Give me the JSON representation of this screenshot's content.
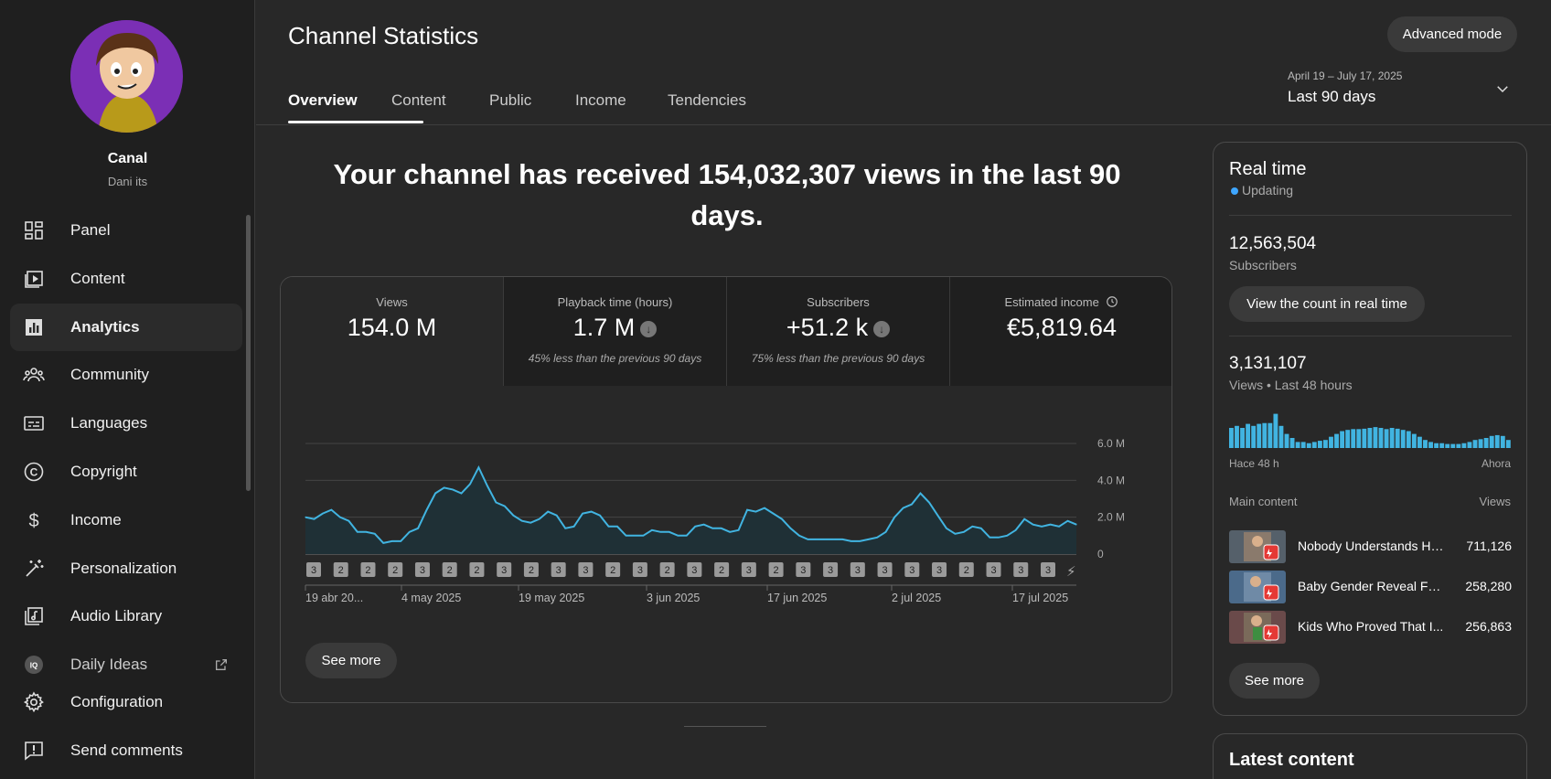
{
  "sidebar": {
    "channel_name": "Canal",
    "channel_handle": "Dani its",
    "items": [
      {
        "label": "Panel",
        "icon": "dashboard-icon"
      },
      {
        "label": "Content",
        "icon": "content-icon"
      },
      {
        "label": "Analytics",
        "icon": "analytics-icon",
        "active": true
      },
      {
        "label": "Community",
        "icon": "community-icon"
      },
      {
        "label": "Languages",
        "icon": "subtitles-icon"
      },
      {
        "label": "Copyright",
        "icon": "copyright-icon"
      },
      {
        "label": "Income",
        "icon": "dollar-icon"
      },
      {
        "label": "Personalization",
        "icon": "magic-wand-icon"
      },
      {
        "label": "Audio Library",
        "icon": "audio-library-icon"
      },
      {
        "label": "Daily Ideas",
        "icon": "ideas-icon"
      },
      {
        "label": "Configuration",
        "icon": "gear-icon"
      },
      {
        "label": "Send comments",
        "icon": "feedback-icon"
      }
    ]
  },
  "header": {
    "title": "Channel Statistics",
    "advanced_mode": "Advanced mode",
    "tabs": [
      "Overview",
      "Content",
      "Public",
      "Income",
      "Tendencies"
    ],
    "date_range": "April 19 – July 17, 2025",
    "date_label": "Last 90 days"
  },
  "headline": "Your channel has received 154,032,307 views in the last 90 days.",
  "stats": [
    {
      "label": "Views",
      "value": "154.0 M",
      "note": ""
    },
    {
      "label": "Playback time (hours)",
      "value": "1.7 M",
      "note": "45% less than the previous 90 days"
    },
    {
      "label": "Subscribers",
      "value": "+51.2 k",
      "note": "75% less than the previous 90 days"
    },
    {
      "label": "Estimated income",
      "value": "€5,819.64",
      "note": ""
    }
  ],
  "chart_data": {
    "type": "area",
    "series_name": "",
    "ylim": [
      0,
      6.0
    ],
    "y_ticks": [
      "6.0 M",
      "4.0 M",
      "2.0 M",
      "0"
    ],
    "x_tick_labels": [
      "19 abr 20...",
      "4 may 2025",
      "19 may 2025",
      "3 jun 2025",
      "17 jun 2025",
      "2 jul 2025",
      "17 jul 2025"
    ],
    "values": [
      2.0,
      1.9,
      2.2,
      2.4,
      2.0,
      1.8,
      1.2,
      1.2,
      1.1,
      0.6,
      0.7,
      0.7,
      1.2,
      1.4,
      2.4,
      3.3,
      3.6,
      3.5,
      3.3,
      3.8,
      4.7,
      3.7,
      2.8,
      2.6,
      2.1,
      1.8,
      1.7,
      1.9,
      2.3,
      2.1,
      1.4,
      1.5,
      2.2,
      2.3,
      2.1,
      1.5,
      1.5,
      1.0,
      1.0,
      1.0,
      1.3,
      1.2,
      1.2,
      1.0,
      1.0,
      1.5,
      1.6,
      1.4,
      1.4,
      1.2,
      1.3,
      2.4,
      2.3,
      2.5,
      2.2,
      1.9,
      1.4,
      1.0,
      0.8,
      0.8,
      0.8,
      0.8,
      0.8,
      0.7,
      0.7,
      0.8,
      0.9,
      1.2,
      2.0,
      2.5,
      2.7,
      3.3,
      2.8,
      2.1,
      1.4,
      1.1,
      1.2,
      1.5,
      1.4,
      0.9,
      0.9,
      1.0,
      1.3,
      1.9,
      1.6,
      1.5,
      1.6,
      1.5,
      1.8,
      1.6
    ],
    "markers": [
      "3",
      "2",
      "2",
      "2",
      "3",
      "2",
      "2",
      "3",
      "2",
      "3",
      "3",
      "2",
      "3",
      "2",
      "3",
      "2",
      "3",
      "2",
      "3",
      "3",
      "3",
      "3",
      "3",
      "3",
      "2",
      "3",
      "3",
      "3"
    ]
  },
  "see_more": "See more",
  "realtime": {
    "title": "Real time",
    "status": "Updating",
    "subscribers": "12,563,504",
    "subscribers_label": "Subscribers",
    "count_button": "View the count in real time",
    "views": "3,131,107",
    "views_label": "Views • Last 48 hours",
    "range_start": "Hace 48 h",
    "range_end": "Ahora",
    "bars": [
      0.5,
      0.55,
      0.5,
      0.6,
      0.55,
      0.6,
      0.62,
      0.62,
      0.85,
      0.55,
      0.35,
      0.25,
      0.15,
      0.15,
      0.12,
      0.15,
      0.18,
      0.2,
      0.28,
      0.35,
      0.42,
      0.45,
      0.47,
      0.47,
      0.48,
      0.5,
      0.52,
      0.5,
      0.47,
      0.5,
      0.48,
      0.45,
      0.42,
      0.35,
      0.28,
      0.2,
      0.15,
      0.12,
      0.12,
      0.1,
      0.1,
      0.1,
      0.12,
      0.15,
      0.2,
      0.22,
      0.25,
      0.3,
      0.32,
      0.3,
      0.2
    ],
    "content_header": "Main content",
    "content_views_header": "Views",
    "top_content": [
      {
        "title": "Nobody Understands How Th...",
        "views": "711,126"
      },
      {
        "title": "Baby Gender Reveal Fail...",
        "views": "258,280"
      },
      {
        "title": "Kids Who Proved That I...",
        "views": "256,863"
      }
    ]
  },
  "latest_content": "Latest content"
}
